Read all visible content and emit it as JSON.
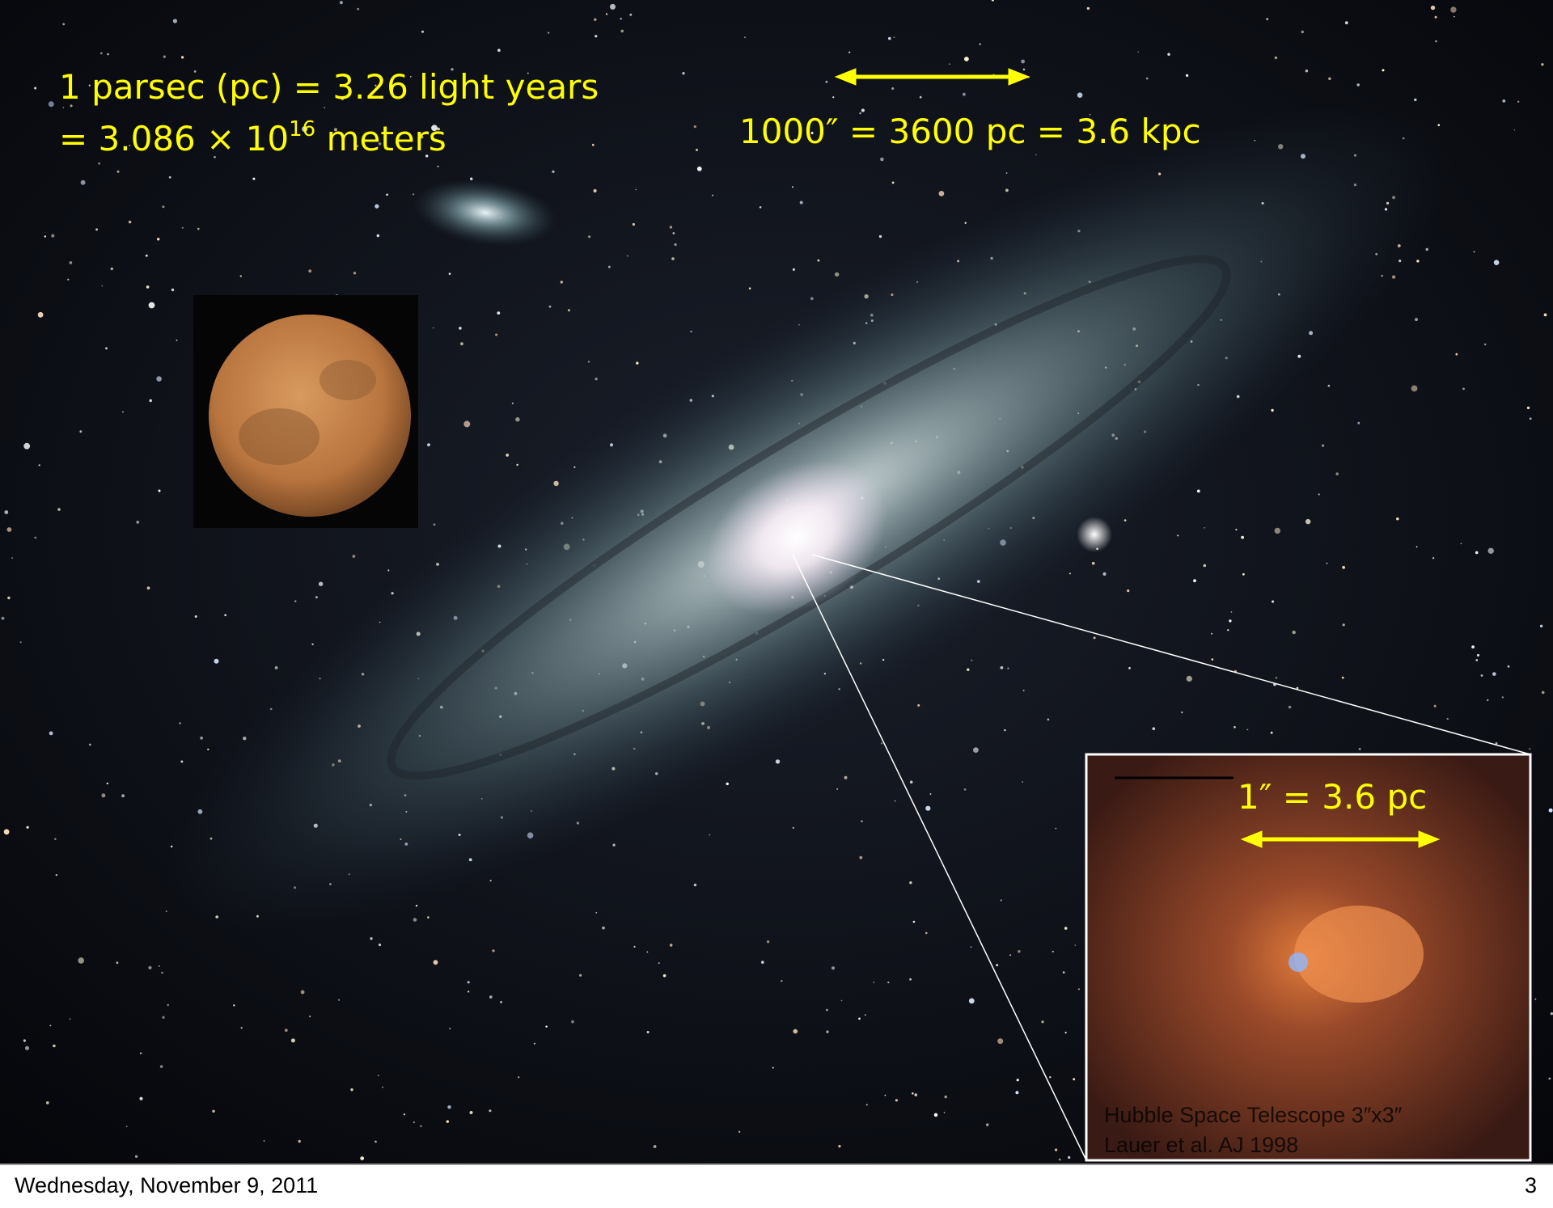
{
  "slide": {
    "parsec_line1": "1 parsec (pc) = 3.26 light years",
    "parsec_line2": {
      "prefix": "= 3.086 × 10",
      "exponent": "16",
      "suffix": " meters"
    },
    "galaxy_scale": "1000″ = 3600 pc = 3.6 kpc",
    "inset_scale": "1″ = 3.6 pc",
    "inset_credit": [
      "Hubble Space Telescope 3″x3″",
      "Lauer et al. AJ 1998"
    ]
  },
  "footer": {
    "date": "Wednesday, November 9, 2011",
    "page": "3"
  }
}
